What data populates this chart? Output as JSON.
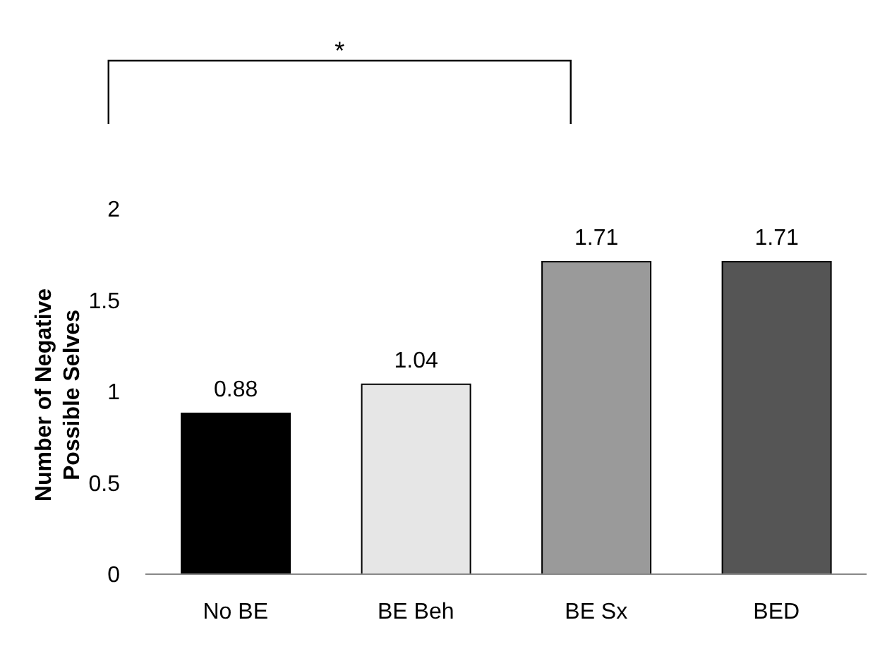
{
  "chart_data": {
    "type": "bar",
    "categories": [
      "No BE",
      "BE Beh",
      "BE Sx",
      "BED"
    ],
    "values": [
      0.88,
      1.04,
      1.71,
      1.71
    ],
    "colors": [
      "#000000",
      "#e6e6e6",
      "#9a9a9a",
      "#555555"
    ],
    "ylabel": "Number of Negative Possible Selves",
    "ylim": [
      0,
      2
    ],
    "yticks": [
      0,
      0.5,
      1,
      1.5,
      2
    ],
    "data_labels": true,
    "grid": false,
    "annotations": [
      "*"
    ]
  }
}
